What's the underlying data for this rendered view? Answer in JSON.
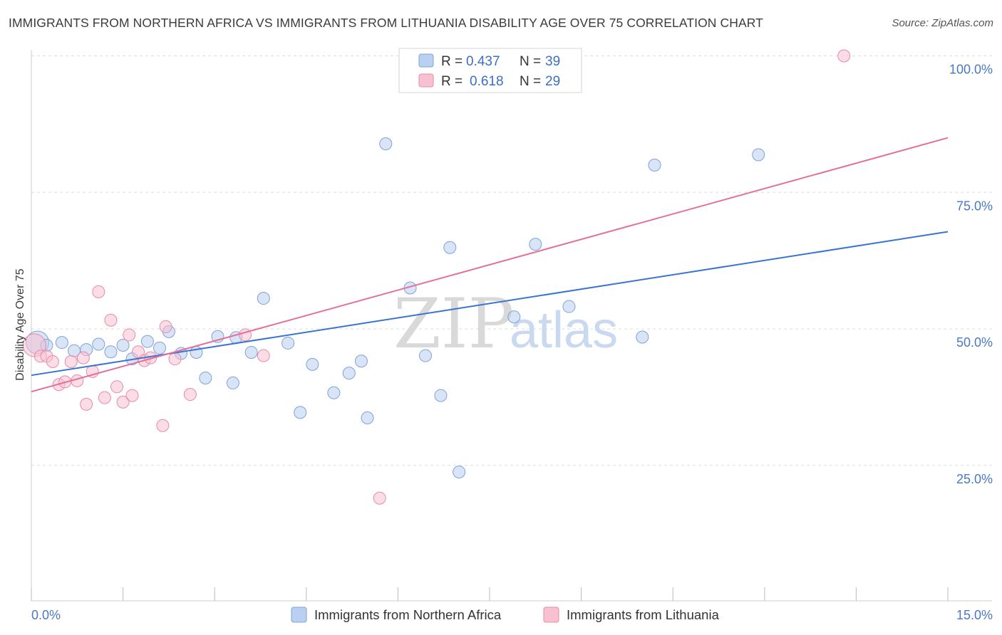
{
  "title": "IMMIGRANTS FROM NORTHERN AFRICA VS IMMIGRANTS FROM LITHUANIA DISABILITY AGE OVER 75 CORRELATION CHART",
  "source": "Source: ZipAtlas.com",
  "watermark": {
    "zip": "ZIP",
    "atlas": "atlas"
  },
  "colors": {
    "blue_fill": "#b9d0f0",
    "blue_stroke": "#7ea3d8",
    "blue_line": "#3a74d1",
    "pink_fill": "#f8c1d1",
    "pink_stroke": "#e88aa8",
    "pink_line": "#e2709b",
    "grid": "#dddddd",
    "tick_text": "#4a78c8"
  },
  "legend": {
    "rows": [
      {
        "r_label": "R =",
        "r_value": "0.437",
        "n_label": "N =",
        "n_value": "39"
      },
      {
        "r_label": "R =",
        "r_value": "0.618",
        "n_label": "N =",
        "n_value": "29"
      }
    ]
  },
  "chart_data": {
    "type": "scatter",
    "title": "IMMIGRANTS FROM NORTHERN AFRICA VS IMMIGRANTS FROM LITHUANIA DISABILITY AGE OVER 75 CORRELATION CHART",
    "xlabel": "",
    "ylabel": "Disability Age Over 75",
    "xlim": [
      0,
      15
    ],
    "ylim": [
      0,
      102
    ],
    "x_tick_labels": [
      {
        "value": 0,
        "label": "0.0%"
      },
      {
        "value": 15,
        "label": "15.0%"
      }
    ],
    "x_ticks": [
      0,
      1.5,
      3,
      4.5,
      6,
      7.5,
      9,
      10.5,
      12,
      13.5,
      15
    ],
    "y_ticks": [
      {
        "value": 25,
        "label": "25.0%"
      },
      {
        "value": 50,
        "label": "50.0%"
      },
      {
        "value": 75,
        "label": "75.0%"
      },
      {
        "value": 100,
        "label": "100.0%"
      }
    ],
    "grid": true,
    "legend_position": "top-center",
    "series": [
      {
        "name": "Immigrants from Northern Africa",
        "color": "blue",
        "R": 0.437,
        "N": 39,
        "trend": {
          "x0": 0,
          "y0": 41.5,
          "x1": 15,
          "y1": 67.8
        },
        "points": [
          {
            "x": 0.1,
            "y": 47.5,
            "big": true
          },
          {
            "x": 0.25,
            "y": 47.0
          },
          {
            "x": 0.5,
            "y": 47.5
          },
          {
            "x": 0.7,
            "y": 46.0
          },
          {
            "x": 0.9,
            "y": 46.2
          },
          {
            "x": 1.1,
            "y": 47.2
          },
          {
            "x": 1.3,
            "y": 45.8
          },
          {
            "x": 1.5,
            "y": 47.0
          },
          {
            "x": 1.65,
            "y": 44.5
          },
          {
            "x": 1.9,
            "y": 47.7
          },
          {
            "x": 2.1,
            "y": 46.5
          },
          {
            "x": 2.25,
            "y": 49.5
          },
          {
            "x": 2.45,
            "y": 45.5
          },
          {
            "x": 2.7,
            "y": 45.7
          },
          {
            "x": 2.85,
            "y": 41.0
          },
          {
            "x": 3.05,
            "y": 48.6
          },
          {
            "x": 3.3,
            "y": 40.1
          },
          {
            "x": 3.35,
            "y": 48.4
          },
          {
            "x": 3.6,
            "y": 45.7
          },
          {
            "x": 3.8,
            "y": 55.6
          },
          {
            "x": 4.2,
            "y": 47.4
          },
          {
            "x": 4.4,
            "y": 34.7
          },
          {
            "x": 4.6,
            "y": 43.5
          },
          {
            "x": 4.95,
            "y": 38.3
          },
          {
            "x": 5.2,
            "y": 41.9
          },
          {
            "x": 5.4,
            "y": 44.1
          },
          {
            "x": 5.5,
            "y": 33.7
          },
          {
            "x": 5.8,
            "y": 83.9
          },
          {
            "x": 6.2,
            "y": 57.5
          },
          {
            "x": 6.45,
            "y": 45.1
          },
          {
            "x": 6.7,
            "y": 37.8
          },
          {
            "x": 6.85,
            "y": 64.9
          },
          {
            "x": 7.0,
            "y": 23.8
          },
          {
            "x": 7.9,
            "y": 52.2
          },
          {
            "x": 8.25,
            "y": 65.5
          },
          {
            "x": 8.8,
            "y": 54.1
          },
          {
            "x": 10.0,
            "y": 48.5
          },
          {
            "x": 10.2,
            "y": 80.0
          },
          {
            "x": 11.9,
            "y": 81.9
          }
        ]
      },
      {
        "name": "Immigrants from Lithuania",
        "color": "pink",
        "R": 0.618,
        "N": 29,
        "trend": {
          "x0": 0,
          "y0": 38.5,
          "x1": 15,
          "y1": 85.0
        },
        "points": [
          {
            "x": 0.05,
            "y": 47.0,
            "big": true
          },
          {
            "x": 0.15,
            "y": 45.0
          },
          {
            "x": 0.25,
            "y": 45.0
          },
          {
            "x": 0.35,
            "y": 44.0
          },
          {
            "x": 0.45,
            "y": 39.8
          },
          {
            "x": 0.55,
            "y": 40.3
          },
          {
            "x": 0.65,
            "y": 44.0
          },
          {
            "x": 0.75,
            "y": 40.5
          },
          {
            "x": 0.85,
            "y": 44.7
          },
          {
            "x": 0.9,
            "y": 36.2
          },
          {
            "x": 1.0,
            "y": 42.2
          },
          {
            "x": 1.1,
            "y": 56.8
          },
          {
            "x": 1.2,
            "y": 37.4
          },
          {
            "x": 1.3,
            "y": 51.6
          },
          {
            "x": 1.4,
            "y": 39.4
          },
          {
            "x": 1.5,
            "y": 36.6
          },
          {
            "x": 1.6,
            "y": 48.9
          },
          {
            "x": 1.65,
            "y": 37.8
          },
          {
            "x": 1.75,
            "y": 45.8
          },
          {
            "x": 1.85,
            "y": 44.2
          },
          {
            "x": 1.95,
            "y": 44.7
          },
          {
            "x": 2.15,
            "y": 32.3
          },
          {
            "x": 2.2,
            "y": 50.4
          },
          {
            "x": 2.35,
            "y": 44.5
          },
          {
            "x": 2.6,
            "y": 38.0
          },
          {
            "x": 3.5,
            "y": 48.9
          },
          {
            "x": 3.8,
            "y": 45.1
          },
          {
            "x": 5.7,
            "y": 19.0
          },
          {
            "x": 13.3,
            "y": 100.0
          }
        ]
      }
    ]
  }
}
